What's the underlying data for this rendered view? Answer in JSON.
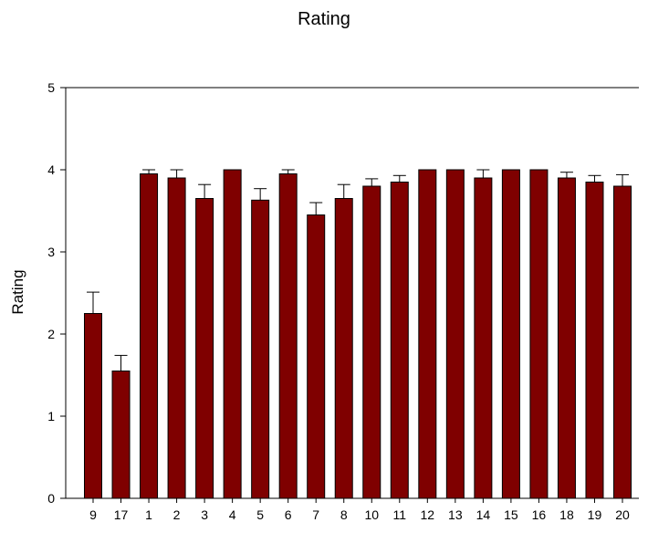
{
  "chart_data": {
    "type": "bar",
    "title": "Rating",
    "xlabel": "",
    "ylabel": "Rating",
    "categories": [
      "9",
      "17",
      "1",
      "2",
      "3",
      "4",
      "5",
      "6",
      "7",
      "8",
      "10",
      "11",
      "12",
      "13",
      "14",
      "15",
      "16",
      "18",
      "19",
      "20"
    ],
    "values": [
      2.25,
      1.55,
      3.95,
      3.9,
      3.65,
      4.0,
      3.63,
      3.95,
      3.45,
      3.65,
      3.8,
      3.85,
      4.0,
      4.0,
      3.9,
      4.0,
      4.0,
      3.9,
      3.85,
      3.8
    ],
    "errors": [
      0.26,
      0.19,
      0.05,
      0.1,
      0.17,
      0.0,
      0.14,
      0.05,
      0.15,
      0.17,
      0.09,
      0.08,
      0.0,
      0.0,
      0.1,
      0.0,
      0.0,
      0.07,
      0.08,
      0.14
    ],
    "yticks": [
      "0",
      "1",
      "2",
      "3",
      "4",
      "5"
    ],
    "ylim": [
      0,
      5
    ],
    "bar_color": "#7f0000",
    "grid": false
  }
}
